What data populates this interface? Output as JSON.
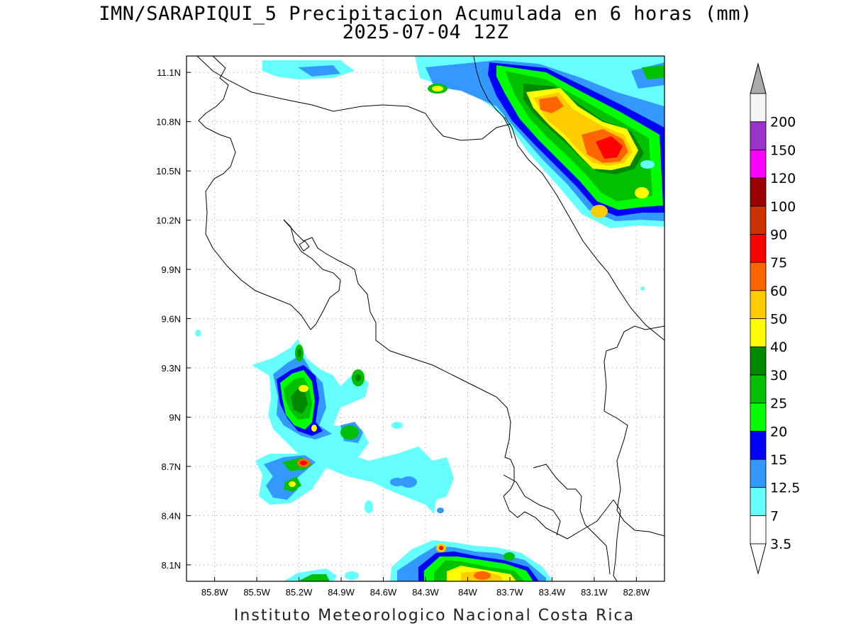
{
  "title": {
    "line1": "IMN/SARAPIQUI_5 Precipitacion Acumulada en 6 horas (mm)",
    "line2": "2025-07-04 12Z"
  },
  "footer": "Instituto Meteorologico Nacional Costa Rica",
  "axes": {
    "lon_min": -86.0,
    "lon_max": -82.6,
    "lat_min": 8.0,
    "lat_max": 11.2,
    "lon_ticks": [
      "85.8W",
      "85.5W",
      "85.2W",
      "84.9W",
      "84.6W",
      "84.3W",
      "84W",
      "83.7W",
      "83.4W",
      "83.1W",
      "82.8W"
    ],
    "lat_ticks": [
      "11.1N",
      "10.8N",
      "10.5N",
      "10.2N",
      "9.9N",
      "9.6N",
      "9.3N",
      "9N",
      "8.7N",
      "8.4N",
      "8.1N"
    ],
    "grid": "dotted"
  },
  "colorbar": {
    "levels": [
      "3.5",
      "7",
      "12.5",
      "15",
      "20",
      "25",
      "30",
      "40",
      "50",
      "60",
      "75",
      "90",
      "100",
      "120",
      "150",
      "200"
    ],
    "colors": [
      "#ffffff",
      "#66ffff",
      "#3399ff",
      "#0000ff",
      "#00ff00",
      "#00c000",
      "#008800",
      "#ffff00",
      "#ffcc00",
      "#ff6600",
      "#ff0000",
      "#cc3300",
      "#990000",
      "#ff00ff",
      "#9933cc",
      "#f5f5f5"
    ],
    "over_color": "#aaaaaa",
    "under_color": "#ffffff"
  }
}
